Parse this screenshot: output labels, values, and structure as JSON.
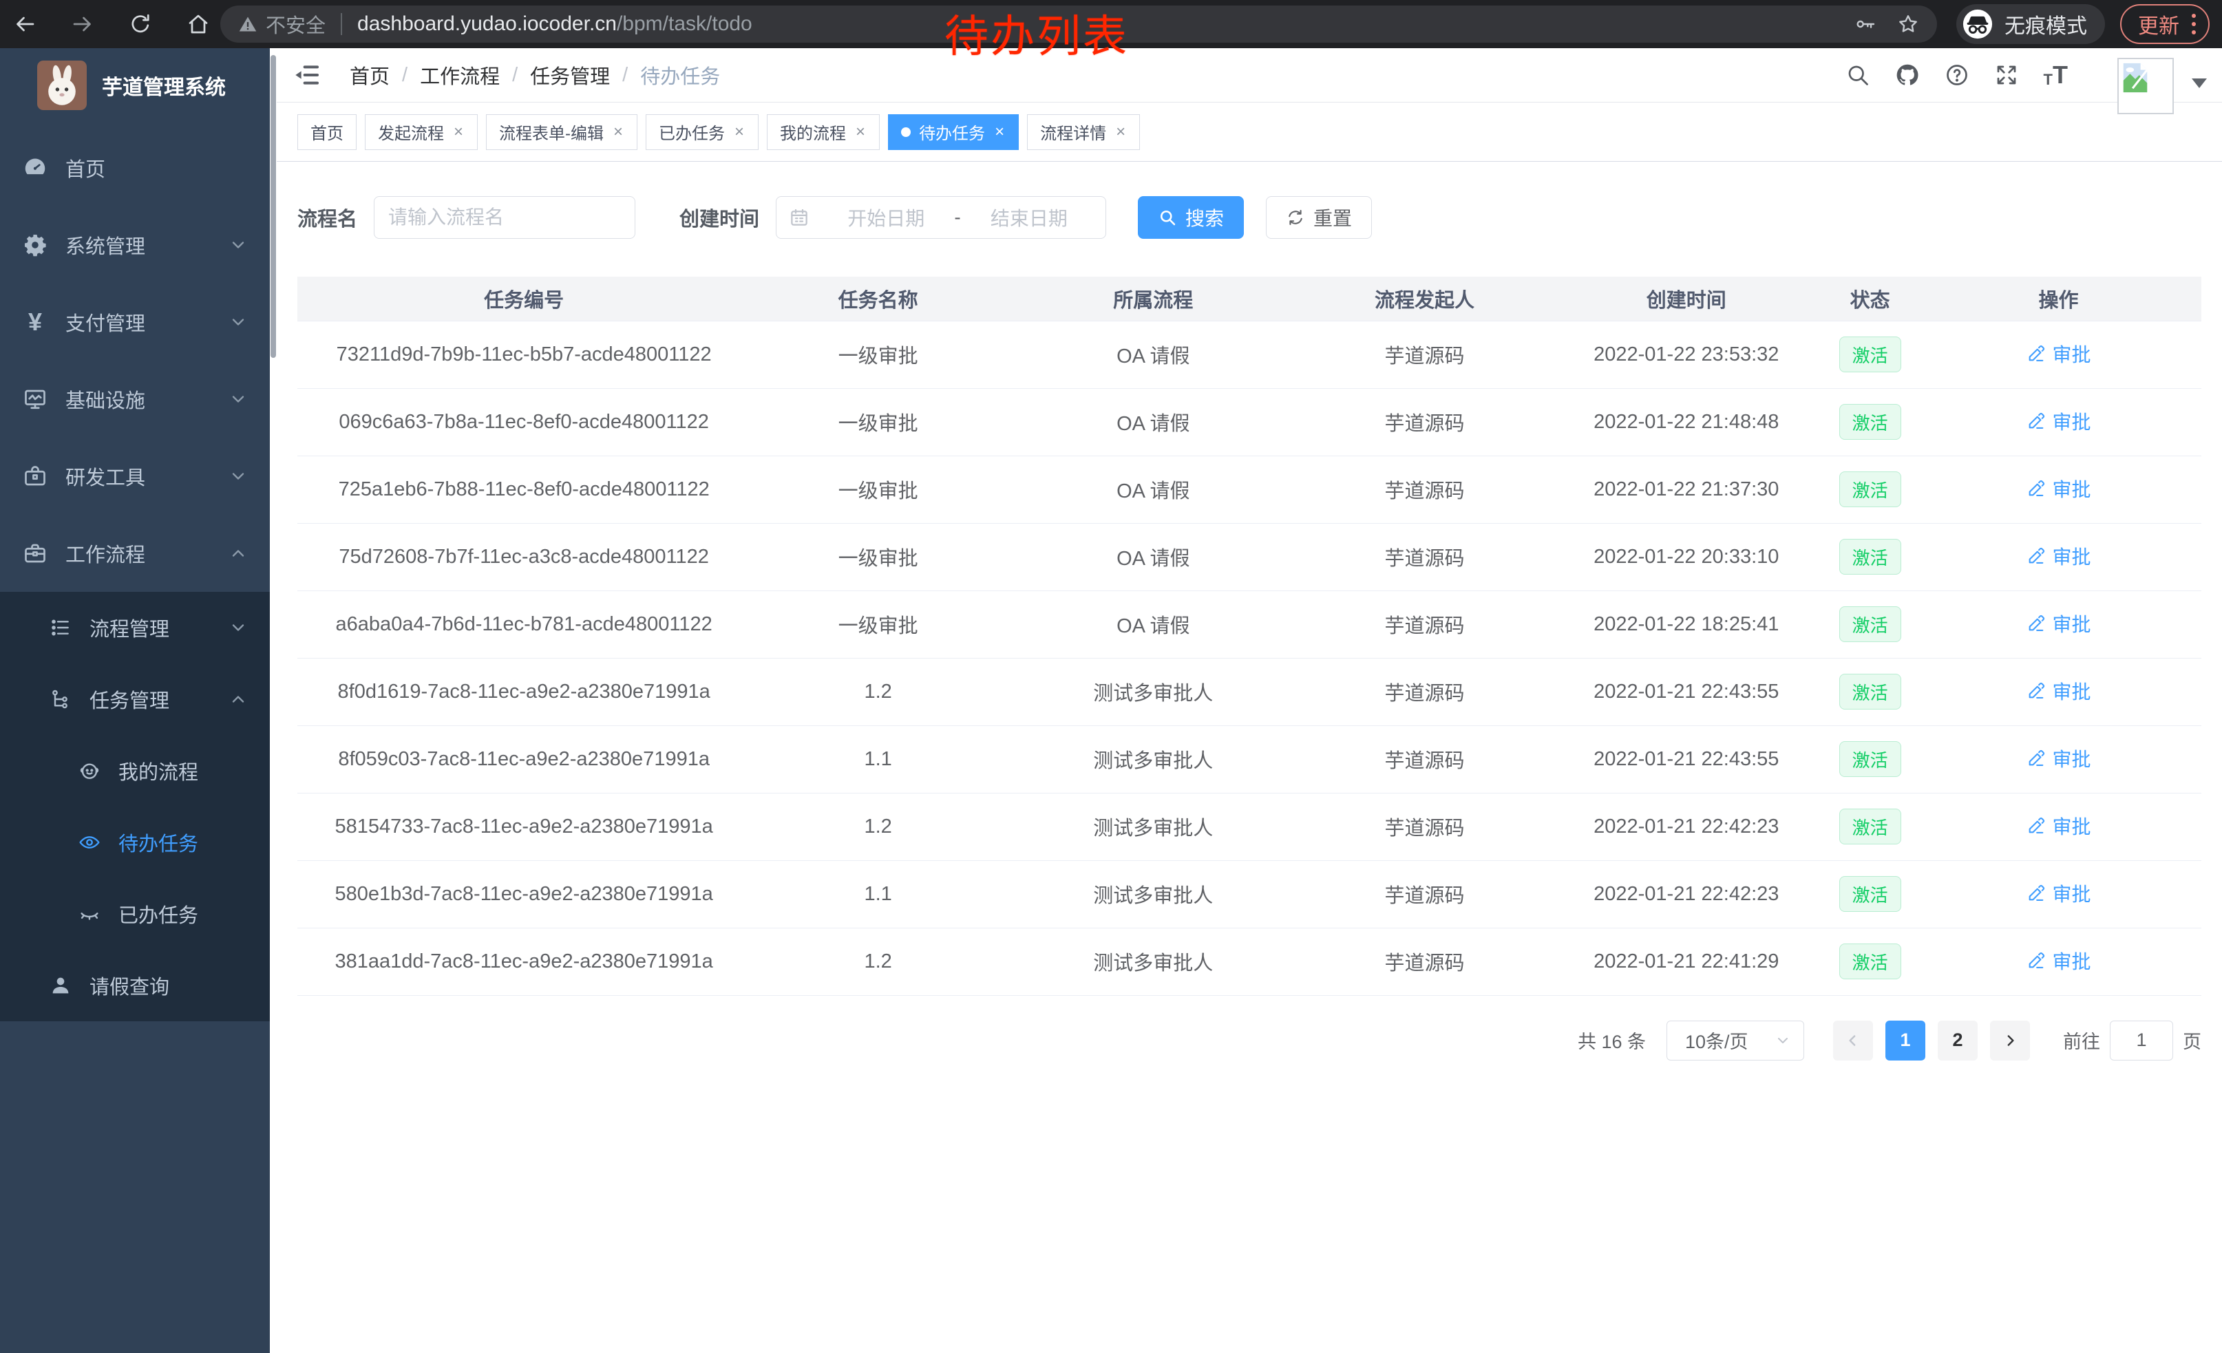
{
  "browser": {
    "security_label": "不安全",
    "url_domain": "dashboard.yudao.iocoder.cn",
    "url_path": "/bpm/task/todo",
    "incognito_label": "无痕模式",
    "update_label": "更新"
  },
  "annotation": {
    "text": "待办列表",
    "color": "#ff2600"
  },
  "sidebar": {
    "title": "芋道管理系统",
    "menu": [
      {
        "label": "首页",
        "icon": "dashboard",
        "level": 1,
        "chevron": null,
        "active": false
      },
      {
        "label": "系统管理",
        "icon": "gear",
        "level": 1,
        "chevron": "down",
        "active": false
      },
      {
        "label": "支付管理",
        "icon": "yen",
        "level": 1,
        "chevron": "down",
        "active": false
      },
      {
        "label": "基础设施",
        "icon": "monitor",
        "level": 1,
        "chevron": "down",
        "active": false
      },
      {
        "label": "研发工具",
        "icon": "toolbox",
        "level": 1,
        "chevron": "down",
        "active": false
      },
      {
        "label": "工作流程",
        "icon": "briefcase",
        "level": 1,
        "chevron": "up",
        "active": false
      }
    ],
    "submenu": [
      {
        "label": "流程管理",
        "icon": "list",
        "level": 2,
        "chevron": "down",
        "active": false
      },
      {
        "label": "任务管理",
        "icon": "tree",
        "level": 2,
        "chevron": "up",
        "active": false
      },
      {
        "label": "我的流程",
        "icon": "robot",
        "level": 3,
        "chevron": null,
        "active": false
      },
      {
        "label": "待办任务",
        "icon": "eye",
        "level": 3,
        "chevron": null,
        "active": true
      },
      {
        "label": "已办任务",
        "icon": "eye-closed",
        "level": 3,
        "chevron": null,
        "active": false
      },
      {
        "label": "请假查询",
        "icon": "user",
        "level": 2,
        "chevron": null,
        "active": false
      }
    ]
  },
  "header": {
    "breadcrumb": [
      "首页",
      "工作流程",
      "任务管理",
      "待办任务"
    ],
    "breadcrumb_separator": "/"
  },
  "tabs": [
    {
      "label": "首页",
      "closable": false,
      "active": false
    },
    {
      "label": "发起流程",
      "closable": true,
      "active": false
    },
    {
      "label": "流程表单-编辑",
      "closable": true,
      "active": false
    },
    {
      "label": "已办任务",
      "closable": true,
      "active": false
    },
    {
      "label": "我的流程",
      "closable": true,
      "active": false
    },
    {
      "label": "待办任务",
      "closable": true,
      "active": true
    },
    {
      "label": "流程详情",
      "closable": true,
      "active": false
    }
  ],
  "filters": {
    "name_label": "流程名",
    "name_placeholder": "请输入流程名",
    "date_label": "创建时间",
    "date_start_placeholder": "开始日期",
    "date_separator": "-",
    "date_end_placeholder": "结束日期",
    "search_label": "搜索",
    "reset_label": "重置"
  },
  "table": {
    "columns": [
      "任务编号",
      "任务名称",
      "所属流程",
      "流程发起人",
      "创建时间",
      "状态",
      "操作"
    ],
    "status_label": "激活",
    "action_label": "审批",
    "rows": [
      [
        "73211d9d-7b9b-11ec-b5b7-acde48001122",
        "一级审批",
        "OA 请假",
        "芋道源码",
        "2022-01-22 23:53:32"
      ],
      [
        "069c6a63-7b8a-11ec-8ef0-acde48001122",
        "一级审批",
        "OA 请假",
        "芋道源码",
        "2022-01-22 21:48:48"
      ],
      [
        "725a1eb6-7b88-11ec-8ef0-acde48001122",
        "一级审批",
        "OA 请假",
        "芋道源码",
        "2022-01-22 21:37:30"
      ],
      [
        "75d72608-7b7f-11ec-a3c8-acde48001122",
        "一级审批",
        "OA 请假",
        "芋道源码",
        "2022-01-22 20:33:10"
      ],
      [
        "a6aba0a4-7b6d-11ec-b781-acde48001122",
        "一级审批",
        "OA 请假",
        "芋道源码",
        "2022-01-22 18:25:41"
      ],
      [
        "8f0d1619-7ac8-11ec-a9e2-a2380e71991a",
        "1.2",
        "测试多审批人",
        "芋道源码",
        "2022-01-21 22:43:55"
      ],
      [
        "8f059c03-7ac8-11ec-a9e2-a2380e71991a",
        "1.1",
        "测试多审批人",
        "芋道源码",
        "2022-01-21 22:43:55"
      ],
      [
        "58154733-7ac8-11ec-a9e2-a2380e71991a",
        "1.2",
        "测试多审批人",
        "芋道源码",
        "2022-01-21 22:42:23"
      ],
      [
        "580e1b3d-7ac8-11ec-a9e2-a2380e71991a",
        "1.1",
        "测试多审批人",
        "芋道源码",
        "2022-01-21 22:42:23"
      ],
      [
        "381aa1dd-7ac8-11ec-a9e2-a2380e71991a",
        "1.2",
        "测试多审批人",
        "芋道源码",
        "2022-01-21 22:41:29"
      ]
    ]
  },
  "pagination": {
    "total": "共 16 条",
    "page_size": "10条/页",
    "pages": [
      "1",
      "2"
    ],
    "active_page": "1",
    "jump_label": "前往",
    "jump_value": "1",
    "jump_suffix": "页"
  },
  "colors": {
    "accent": "#409eff",
    "success": "#13ce66",
    "sidebar_bg": "#304156",
    "submenu_bg": "#1f2d3d",
    "annotation": "#ff2600"
  }
}
